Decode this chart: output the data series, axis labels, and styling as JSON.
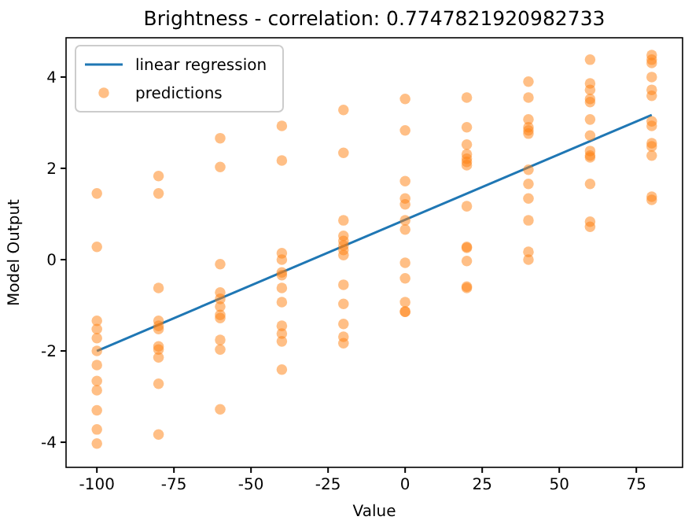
{
  "chart_data": {
    "type": "scatter",
    "title": "Brightness - correlation: 0.7747821920982733",
    "xlabel": "Value",
    "ylabel": "Model Output",
    "xlim": [
      -110,
      90
    ],
    "ylim": [
      -4.55,
      4.86
    ],
    "xticks": [
      -100,
      -75,
      -50,
      -25,
      0,
      25,
      50,
      75
    ],
    "yticks": [
      -4,
      -2,
      0,
      2,
      4
    ],
    "legend": "top left",
    "series": [
      {
        "name": "linear regression",
        "type": "line",
        "color": "#1f77b4",
        "x": [
          -100,
          80
        ],
        "values": [
          -2.0,
          3.17
        ]
      },
      {
        "name": "predictions",
        "marker": "circle",
        "color": "#ff7f0e",
        "x": [
          -100,
          -100,
          -100,
          -100,
          -100,
          -100,
          -100,
          -100,
          -100,
          -100,
          -100,
          -100,
          -80,
          -80,
          -80,
          -80,
          -80,
          -80,
          -80,
          -80,
          -80,
          -80,
          -80,
          -60,
          -60,
          -60,
          -60,
          -60,
          -60,
          -60,
          -60,
          -60,
          -60,
          -60,
          -40,
          -40,
          -40,
          -40,
          -40,
          -40,
          -40,
          -40,
          -40,
          -40,
          -40,
          -40,
          -20,
          -20,
          -20,
          -20,
          -20,
          -20,
          -20,
          -20,
          -20,
          -20,
          -20,
          -20,
          -20,
          0,
          0,
          0,
          0,
          0,
          0,
          0,
          0,
          0,
          0,
          0,
          0,
          20,
          20,
          20,
          20,
          20,
          20,
          20,
          20,
          20,
          20,
          20,
          20,
          20,
          40,
          40,
          40,
          40,
          40,
          40,
          40,
          40,
          40,
          40,
          40,
          40,
          60,
          60,
          60,
          60,
          60,
          60,
          60,
          60,
          60,
          60,
          60,
          60,
          60,
          80,
          80,
          80,
          80,
          80,
          80,
          80,
          80,
          80,
          80,
          80,
          80,
          80
        ],
        "values": [
          1.45,
          0.28,
          -1.34,
          -1.52,
          -1.72,
          -2.0,
          -2.31,
          -2.66,
          -2.86,
          -3.3,
          -3.72,
          -4.03,
          1.83,
          1.45,
          -0.62,
          -1.34,
          -1.45,
          -1.52,
          -1.9,
          -1.97,
          -2.14,
          -2.72,
          -3.83,
          2.66,
          2.03,
          -0.1,
          -0.72,
          -0.86,
          -1.03,
          -1.21,
          -1.28,
          -1.76,
          -1.97,
          -3.28,
          2.93,
          2.17,
          0.14,
          0.0,
          -0.28,
          -0.34,
          -0.62,
          -0.93,
          -1.45,
          -1.62,
          -1.79,
          -2.41,
          3.28,
          2.34,
          0.86,
          0.52,
          0.41,
          0.31,
          0.21,
          0.1,
          -0.55,
          -0.97,
          -1.41,
          -1.69,
          -1.83,
          3.52,
          2.83,
          1.72,
          1.34,
          1.21,
          0.86,
          0.66,
          -0.07,
          -0.41,
          -0.93,
          -1.14,
          -1.14,
          3.55,
          2.9,
          2.52,
          2.31,
          2.21,
          2.14,
          2.07,
          1.17,
          0.28,
          0.26,
          -0.03,
          -0.59,
          -0.62,
          3.9,
          3.55,
          3.07,
          2.9,
          2.83,
          2.76,
          1.97,
          1.66,
          1.34,
          0.86,
          0.17,
          0.0,
          4.38,
          3.86,
          3.72,
          3.52,
          3.45,
          3.07,
          2.72,
          2.38,
          2.28,
          2.24,
          1.66,
          0.83,
          0.72,
          4.48,
          4.38,
          4.31,
          4.0,
          3.72,
          3.59,
          3.03,
          2.93,
          2.55,
          2.48,
          2.28,
          1.38,
          1.31
        ]
      }
    ]
  }
}
